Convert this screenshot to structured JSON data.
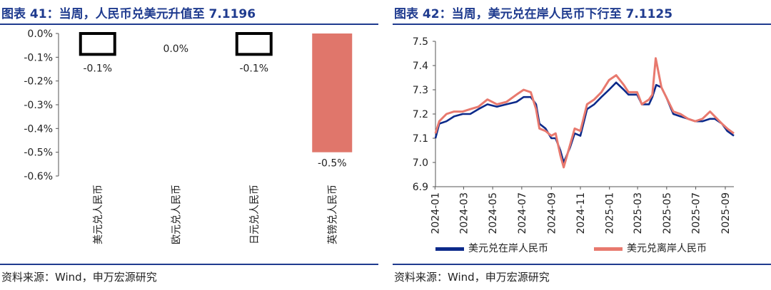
{
  "left": {
    "title": "图表 41：当周，人民币兑美元升值至 7.1196",
    "source": "资料来源：Wind，申万宏源研究"
  },
  "right": {
    "title": "图表 42：当周，美元兑在岸人民币下行至 7.1125",
    "source": "资料来源：Wind，申万宏源研究"
  },
  "chart_data": [
    {
      "type": "bar",
      "categories": [
        "美元兑人民币",
        "欧元兑人民币",
        "日元兑人民币",
        "英镑兑人民币"
      ],
      "values": [
        -0.1,
        0.0,
        -0.1,
        -0.5
      ],
      "data_labels": [
        "-0.1%",
        "0.0%",
        "-0.1%",
        "-0.5%"
      ],
      "bar_styles": [
        "outline",
        "none",
        "outline",
        "filled"
      ],
      "yticks": [
        "0.0%",
        "-0.1%",
        "-0.2%",
        "-0.3%",
        "-0.4%",
        "-0.5%",
        "-0.6%"
      ],
      "ylim": [
        -0.6,
        0.0
      ],
      "colors": {
        "filled": "#e0766b",
        "outline": "#000000"
      }
    },
    {
      "type": "line",
      "ylim": [
        6.9,
        7.5
      ],
      "yticks": [
        "6.9",
        "7.0",
        "7.1",
        "7.2",
        "7.3",
        "7.4",
        "7.5"
      ],
      "xticks": [
        "2024-01",
        "2024-03",
        "2024-05",
        "2024-07",
        "2024-09",
        "2024-11",
        "2025-01",
        "2025-03",
        "2025-05",
        "2025-07",
        "2025-09"
      ],
      "x_start": "2024-01-02",
      "x_end": "2025-09-19",
      "legend_position": "bottom",
      "series": [
        {
          "name": "美元兑在岸人民币",
          "color": "#0c2a8a",
          "points": [
            [
              "2024-01-02",
              7.1
            ],
            [
              "2024-01-10",
              7.16
            ],
            [
              "2024-01-25",
              7.17
            ],
            [
              "2024-02-10",
              7.19
            ],
            [
              "2024-02-28",
              7.2
            ],
            [
              "2024-03-15",
              7.2
            ],
            [
              "2024-04-01",
              7.22
            ],
            [
              "2024-04-20",
              7.24
            ],
            [
              "2024-05-10",
              7.23
            ],
            [
              "2024-05-30",
              7.24
            ],
            [
              "2024-06-20",
              7.25
            ],
            [
              "2024-07-05",
              7.27
            ],
            [
              "2024-07-20",
              7.27
            ],
            [
              "2024-07-31",
              7.24
            ],
            [
              "2024-08-07",
              7.16
            ],
            [
              "2024-08-20",
              7.14
            ],
            [
              "2024-09-01",
              7.1
            ],
            [
              "2024-09-10",
              7.1
            ],
            [
              "2024-09-20",
              7.05
            ],
            [
              "2024-09-27",
              7.0
            ],
            [
              "2024-10-10",
              7.06
            ],
            [
              "2024-10-20",
              7.12
            ],
            [
              "2024-11-01",
              7.11
            ],
            [
              "2024-11-15",
              7.22
            ],
            [
              "2024-11-30",
              7.24
            ],
            [
              "2024-12-15",
              7.27
            ],
            [
              "2024-12-31",
              7.3
            ],
            [
              "2025-01-15",
              7.33
            ],
            [
              "2025-01-31",
              7.3
            ],
            [
              "2025-02-10",
              7.28
            ],
            [
              "2025-02-28",
              7.28
            ],
            [
              "2025-03-10",
              7.24
            ],
            [
              "2025-03-25",
              7.24
            ],
            [
              "2025-04-01",
              7.27
            ],
            [
              "2025-04-09",
              7.32
            ],
            [
              "2025-04-20",
              7.31
            ],
            [
              "2025-04-30",
              7.27
            ],
            [
              "2025-05-15",
              7.2
            ],
            [
              "2025-05-30",
              7.19
            ],
            [
              "2025-06-15",
              7.18
            ],
            [
              "2025-06-30",
              7.17
            ],
            [
              "2025-07-15",
              7.17
            ],
            [
              "2025-07-31",
              7.18
            ],
            [
              "2025-08-10",
              7.18
            ],
            [
              "2025-08-25",
              7.16
            ],
            [
              "2025-09-05",
              7.13
            ],
            [
              "2025-09-19",
              7.11
            ]
          ]
        },
        {
          "name": "美元兑离岸人民币",
          "color": "#e8796e",
          "points": [
            [
              "2024-01-02",
              7.12
            ],
            [
              "2024-01-10",
              7.17
            ],
            [
              "2024-01-25",
              7.2
            ],
            [
              "2024-02-10",
              7.21
            ],
            [
              "2024-02-28",
              7.21
            ],
            [
              "2024-03-15",
              7.22
            ],
            [
              "2024-04-01",
              7.23
            ],
            [
              "2024-04-20",
              7.26
            ],
            [
              "2024-05-10",
              7.24
            ],
            [
              "2024-05-30",
              7.25
            ],
            [
              "2024-06-20",
              7.28
            ],
            [
              "2024-07-05",
              7.3
            ],
            [
              "2024-07-20",
              7.29
            ],
            [
              "2024-07-31",
              7.22
            ],
            [
              "2024-08-07",
              7.14
            ],
            [
              "2024-08-20",
              7.13
            ],
            [
              "2024-09-01",
              7.11
            ],
            [
              "2024-09-10",
              7.12
            ],
            [
              "2024-09-20",
              7.03
            ],
            [
              "2024-09-27",
              6.98
            ],
            [
              "2024-10-10",
              7.07
            ],
            [
              "2024-10-20",
              7.14
            ],
            [
              "2024-11-01",
              7.13
            ],
            [
              "2024-11-15",
              7.24
            ],
            [
              "2024-11-30",
              7.26
            ],
            [
              "2024-12-15",
              7.29
            ],
            [
              "2024-12-31",
              7.34
            ],
            [
              "2025-01-15",
              7.36
            ],
            [
              "2025-01-31",
              7.32
            ],
            [
              "2025-02-10",
              7.29
            ],
            [
              "2025-02-28",
              7.29
            ],
            [
              "2025-03-10",
              7.24
            ],
            [
              "2025-03-25",
              7.26
            ],
            [
              "2025-04-01",
              7.28
            ],
            [
              "2025-04-08",
              7.43
            ],
            [
              "2025-04-20",
              7.31
            ],
            [
              "2025-04-30",
              7.27
            ],
            [
              "2025-05-15",
              7.21
            ],
            [
              "2025-05-30",
              7.2
            ],
            [
              "2025-06-15",
              7.18
            ],
            [
              "2025-06-30",
              7.17
            ],
            [
              "2025-07-15",
              7.18
            ],
            [
              "2025-07-31",
              7.21
            ],
            [
              "2025-08-10",
              7.19
            ],
            [
              "2025-08-25",
              7.16
            ],
            [
              "2025-09-05",
              7.14
            ],
            [
              "2025-09-19",
              7.12
            ]
          ]
        }
      ]
    }
  ]
}
